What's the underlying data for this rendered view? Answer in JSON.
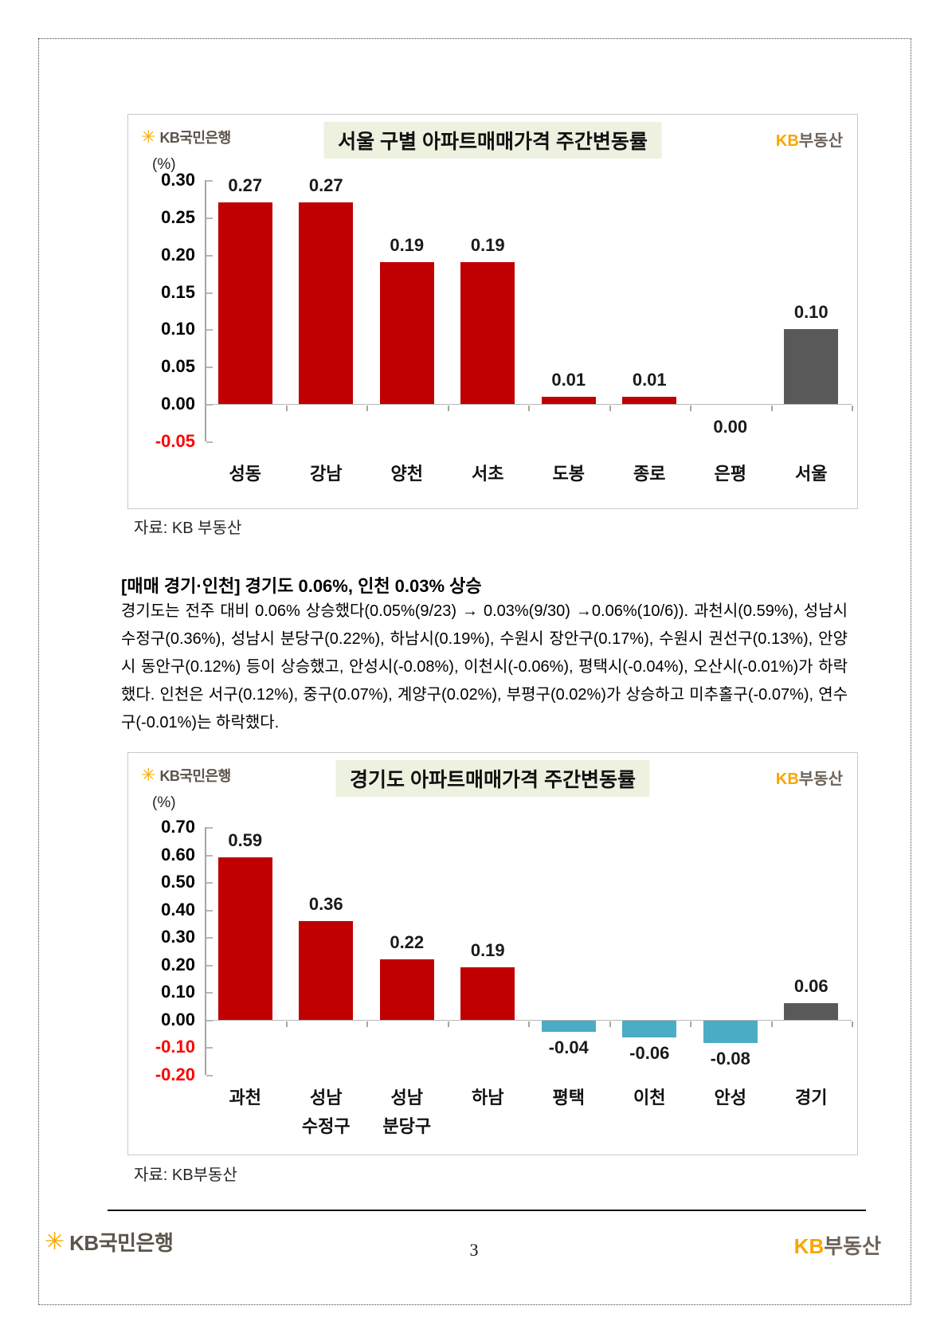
{
  "branding": {
    "bank_name": "KB국민은행",
    "realestate_kb": "KB",
    "realestate_rest": "부동산",
    "star_glyph": "✳",
    "star_color": "#F9A800"
  },
  "section": {
    "heading": "[매매 경기·인천] 경기도 0.06%, 인천 0.03% 상승",
    "body": "경기도는 전주 대비 0.06% 상승했다(0.05%(9/23) → 0.03%(9/30) →0.06%(10/6)). 과천시(0.59%), 성남시 수정구(0.36%), 성남시 분당구(0.22%), 하남시(0.19%), 수원시 장안구(0.17%), 수원시 권선구(0.13%), 안양시 동안구(0.12%) 등이 상승했고, 안성시(-0.08%), 이천시(-0.06%), 평택시(-0.04%), 오산시(-0.01%)가 하락했다. 인천은 서구(0.12%), 중구(0.07%), 계양구(0.02%), 부평구(0.02%)가 상승하고 미추홀구(-0.07%), 연수구(-0.01%)는 하락했다."
  },
  "footer": {
    "page_number": "3"
  },
  "colors": {
    "bar_positive": "#C00000",
    "bar_negative": "#4BACC6",
    "bar_total": "#595959",
    "negative_tick_label": "#FF0000",
    "title_background": "#EDF1DF"
  },
  "chart_data": [
    {
      "type": "bar",
      "title": "서울 구별 아파트매매가격 주간변동률",
      "unit": "(%)",
      "source": "자료: KB 부동산",
      "categories": [
        [
          "성동"
        ],
        [
          "강남"
        ],
        [
          "양천"
        ],
        [
          "서초"
        ],
        [
          "도봉"
        ],
        [
          "종로"
        ],
        [
          "은평"
        ],
        [
          "서울"
        ]
      ],
      "values": [
        0.27,
        0.27,
        0.19,
        0.19,
        0.01,
        0.01,
        0.0,
        0.1
      ],
      "labels": [
        "0.27",
        "0.27",
        "0.19",
        "0.19",
        "0.01",
        "0.01",
        "0.00",
        "0.10"
      ],
      "bar_colors": [
        "#C00000",
        "#C00000",
        "#C00000",
        "#C00000",
        "#C00000",
        "#C00000",
        "#C00000",
        "#595959"
      ],
      "ylim": [
        -0.05,
        0.3
      ],
      "ytick_step": 0.05,
      "grid": false,
      "legend": false
    },
    {
      "type": "bar",
      "title": "경기도 아파트매매가격 주간변동률",
      "unit": "(%)",
      "source": "자료: KB부동산",
      "categories": [
        [
          "과천"
        ],
        [
          "성남",
          "수정구"
        ],
        [
          "성남",
          "분당구"
        ],
        [
          "하남"
        ],
        [
          "평택"
        ],
        [
          "이천"
        ],
        [
          "안성"
        ],
        [
          "경기"
        ]
      ],
      "values": [
        0.59,
        0.36,
        0.22,
        0.19,
        -0.04,
        -0.06,
        -0.08,
        0.06
      ],
      "labels": [
        "0.59",
        "0.36",
        "0.22",
        "0.19",
        "-0.04",
        "-0.06",
        "-0.08",
        "0.06"
      ],
      "bar_colors": [
        "#C00000",
        "#C00000",
        "#C00000",
        "#C00000",
        "#4BACC6",
        "#4BACC6",
        "#4BACC6",
        "#595959"
      ],
      "ylim": [
        -0.2,
        0.7
      ],
      "ytick_step": 0.1,
      "grid": false,
      "legend": false
    }
  ]
}
